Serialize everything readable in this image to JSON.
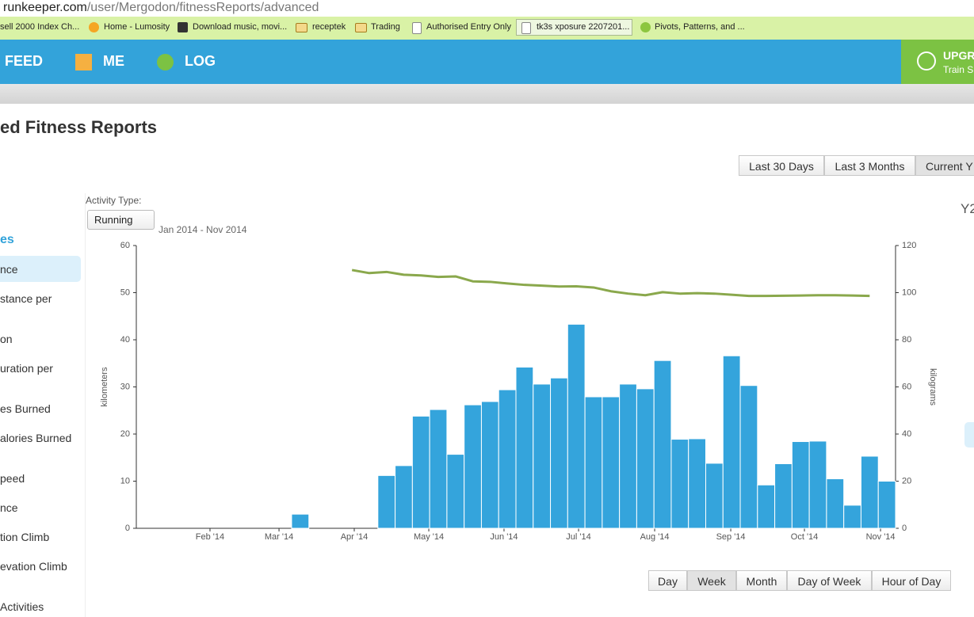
{
  "browser": {
    "url_domain": "runkeeper.com",
    "url_path": "/user/Mergodon/fitnessReports/advanced",
    "bookmarks": [
      "sell 2000 Index Ch...",
      "Home - Lumosity",
      "Download music, movi...",
      "receptek",
      "Trading",
      "Authorised Entry Only",
      "tk3s xposure 2207201...",
      "Pivots, Patterns, and ..."
    ]
  },
  "nav": {
    "items": [
      "FEED",
      "ME",
      "LOG"
    ],
    "upgrade_title": "UPGR",
    "upgrade_sub": "Train S"
  },
  "page": {
    "title": "ed Fitness Reports",
    "range_buttons": [
      "Last 30 Days",
      "Last 3 Months",
      "Current Y"
    ],
    "sidebar": {
      "header": "es",
      "items": [
        "nce",
        "stance per",
        "on",
        "uration per",
        "es Burned",
        "alories Burned",
        "peed",
        "nce",
        "tion Climb",
        "evation Climb",
        "Activities"
      ]
    },
    "activity_label": "Activity Type:",
    "activity_value": "Running",
    "date_range": "Jan 2014 - Nov 2014",
    "granularity_buttons": [
      "Day",
      "Week",
      "Month",
      "Day of Week",
      "Hour of Day"
    ],
    "right_panel": "Y2"
  },
  "chart_data": {
    "type": "bar",
    "categories": [
      null,
      null,
      null,
      null,
      null,
      null,
      null,
      null,
      null,
      null,
      null,
      null,
      null,
      null,
      null,
      null,
      null,
      null,
      null,
      null,
      null,
      null,
      null,
      null,
      null,
      null,
      null,
      null,
      null,
      null,
      null,
      null,
      null,
      null,
      null,
      null,
      null,
      null,
      null,
      null,
      null,
      null,
      null,
      null
    ],
    "xlim": [
      0,
      44
    ],
    "xticks": [
      {
        "value": 4.27,
        "label": "Feb '14"
      },
      {
        "value": 8.27,
        "label": "Mar '14"
      },
      {
        "value": 12.63,
        "label": "Apr '14"
      },
      {
        "value": 16.95,
        "label": "May '14"
      },
      {
        "value": 21.31,
        "label": "Jun '14"
      },
      {
        "value": 25.63,
        "label": "Jul '14"
      },
      {
        "value": 30.04,
        "label": "Aug '14"
      },
      {
        "value": 34.45,
        "label": "Sep '14"
      },
      {
        "value": 38.72,
        "label": "Oct '14"
      },
      {
        "value": 43.13,
        "label": "Nov '14"
      }
    ],
    "ylim": [
      0,
      60
    ],
    "yticks": [
      0,
      10,
      20,
      30,
      40,
      50,
      60
    ],
    "y2lim": [
      0,
      120
    ],
    "y2ticks": [
      0,
      20,
      40,
      60,
      80,
      100,
      120
    ],
    "ylabel": "kilometers",
    "y2label": "kilograms",
    "series": [
      {
        "color": "#34a4dc",
        "values": [
          0,
          0,
          0,
          0,
          0,
          0,
          0,
          0,
          0,
          3.0,
          0,
          0,
          0,
          0,
          11.2,
          13.3,
          23.8,
          25.2,
          15.7,
          26.2,
          26.9,
          29.4,
          34.2,
          30.6,
          31.9,
          43.3,
          27.9,
          27.9,
          30.6,
          29.6,
          35.6,
          18.9,
          19.0,
          13.8,
          36.6,
          30.3,
          9.2,
          13.7,
          18.4,
          18.5,
          10.5,
          4.9,
          15.3,
          10.0
        ]
      },
      {
        "type": "line",
        "axis": "y2",
        "color": "#8aa84c",
        "values": [
          null,
          null,
          null,
          null,
          null,
          null,
          null,
          null,
          null,
          null,
          null,
          null,
          109.6,
          108.3,
          108.8,
          107.6,
          107.3,
          106.7,
          106.9,
          104.8,
          104.6,
          103.9,
          103.3,
          103.0,
          102.6,
          102.7,
          102.2,
          100.6,
          99.6,
          98.9,
          100.2,
          99.6,
          99.8,
          99.6,
          99.1,
          98.6,
          98.6,
          98.7,
          98.8,
          98.9,
          98.9,
          98.8,
          98.6,
          null
        ]
      }
    ]
  }
}
